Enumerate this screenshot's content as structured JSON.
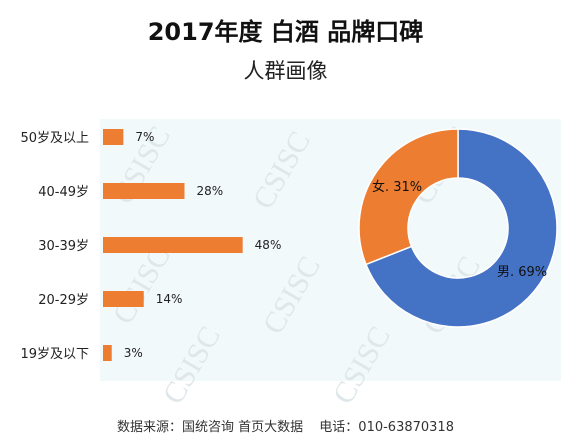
{
  "title": "2017年度 白酒 品牌口碑",
  "subtitle": "人群画像",
  "watermark": "CSISC",
  "footer": {
    "source": "数据来源：国统咨询 首页大数据",
    "phone": "电话：010-63870318"
  },
  "colors": {
    "bar": "#ED7D31",
    "male": "#4472C4",
    "female": "#ED7D31",
    "plot_bg": "#F2F9FB"
  },
  "chart_data": [
    {
      "type": "bar",
      "orientation": "horizontal",
      "categories": [
        "50岁及以上",
        "40-49岁",
        "30-39岁",
        "20-29岁",
        "19岁及以下"
      ],
      "values": [
        7,
        28,
        48,
        14,
        3
      ],
      "value_labels": [
        "7%",
        "28%",
        "48%",
        "14%",
        "3%"
      ],
      "xlim": [
        0,
        100
      ],
      "grid": false
    },
    {
      "type": "pie",
      "donut": true,
      "slices": [
        {
          "label": "男",
          "value": 69,
          "display": "男. 69%"
        },
        {
          "label": "女",
          "value": 31,
          "display": "女. 31%"
        }
      ]
    }
  ]
}
